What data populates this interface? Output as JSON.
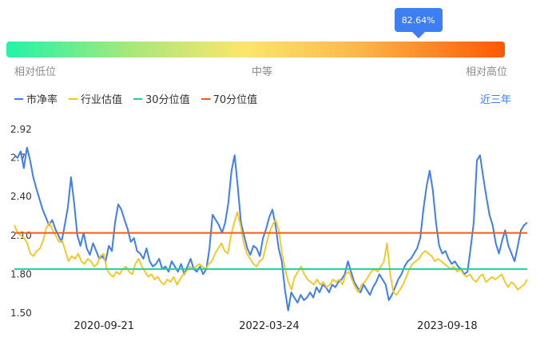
{
  "gauge": {
    "percentile_label": "82.64%",
    "percentile": 0.8264,
    "low_label": "相对低位",
    "mid_label": "中等",
    "high_label": "相对高位"
  },
  "legend": [
    {
      "label": "市净率",
      "color": "#3d7ef4"
    },
    {
      "label": "行业估值",
      "color": "#f8c51b"
    },
    {
      "label": "30分位值",
      "color": "#1ad39a"
    },
    {
      "label": "70分位值",
      "color": "#fa5a11"
    }
  ],
  "range_label": "近三年",
  "chart_data": {
    "type": "line",
    "ylim": [
      1.5,
      2.92
    ],
    "y_ticks": [
      "2.92",
      "2.7",
      "2.40",
      "2.10",
      "1.80",
      "1.50"
    ],
    "y_tick_values": [
      2.92,
      2.7,
      2.4,
      2.1,
      1.8,
      1.5
    ],
    "x_ticks": [
      "2020-09-21",
      "2022-03-24",
      "2023-09-18"
    ],
    "x_tick_positions": [
      0.18,
      0.5,
      0.845
    ],
    "reference_lines": [
      {
        "name": "30分位值",
        "value": 1.84,
        "color": "#1ad39a"
      },
      {
        "name": "70分位值",
        "value": 2.12,
        "color": "#fa5a11"
      }
    ],
    "series": [
      {
        "name": "市净率",
        "color": "#3d7ef4",
        "values": [
          2.72,
          2.7,
          2.75,
          2.62,
          2.78,
          2.68,
          2.55,
          2.46,
          2.38,
          2.3,
          2.24,
          2.18,
          2.22,
          2.15,
          2.1,
          2.05,
          2.18,
          2.32,
          2.55,
          2.35,
          2.1,
          2.02,
          2.12,
          2.0,
          1.95,
          2.04,
          1.98,
          1.92,
          1.94,
          1.9,
          2.02,
          1.98,
          2.2,
          2.34,
          2.3,
          2.22,
          2.15,
          2.05,
          2.08,
          1.98,
          1.96,
          1.92,
          2.0,
          1.9,
          1.86,
          1.88,
          1.92,
          1.84,
          1.86,
          1.82,
          1.9,
          1.86,
          1.82,
          1.88,
          1.8,
          1.86,
          1.92,
          1.84,
          1.82,
          1.86,
          1.8,
          1.84,
          2.0,
          2.26,
          2.22,
          2.18,
          2.12,
          2.2,
          2.35,
          2.6,
          2.72,
          2.48,
          2.2,
          2.1,
          2.0,
          1.95,
          2.02,
          2.0,
          1.94,
          2.08,
          2.15,
          2.24,
          2.3,
          2.18,
          2.0,
          1.9,
          1.68,
          1.52,
          1.66,
          1.62,
          1.58,
          1.64,
          1.6,
          1.62,
          1.66,
          1.62,
          1.7,
          1.66,
          1.72,
          1.7,
          1.66,
          1.72,
          1.7,
          1.74,
          1.76,
          1.8,
          1.9,
          1.82,
          1.74,
          1.7,
          1.66,
          1.72,
          1.68,
          1.64,
          1.7,
          1.74,
          1.8,
          1.76,
          1.72,
          1.6,
          1.64,
          1.7,
          1.76,
          1.8,
          1.86,
          1.9,
          1.92,
          1.96,
          2.0,
          2.08,
          2.3,
          2.48,
          2.6,
          2.45,
          2.2,
          2.02,
          1.96,
          1.98,
          1.92,
          1.88,
          1.9,
          1.86,
          1.84,
          1.8,
          1.82,
          2.0,
          2.2,
          2.68,
          2.72,
          2.55,
          2.4,
          2.26,
          2.18,
          2.04,
          1.96,
          2.06,
          2.14,
          2.02,
          1.96,
          1.9,
          2.02,
          2.14,
          2.18,
          2.2
        ]
      },
      {
        "name": "行业估值",
        "color": "#f8c51b",
        "values": [
          2.18,
          2.12,
          2.1,
          2.08,
          2.04,
          1.96,
          1.94,
          1.98,
          2.0,
          2.06,
          2.16,
          2.2,
          2.14,
          2.1,
          2.05,
          2.06,
          1.98,
          1.9,
          1.94,
          1.92,
          1.96,
          1.9,
          1.88,
          1.92,
          1.9,
          1.86,
          1.88,
          1.94,
          1.96,
          1.84,
          1.8,
          1.78,
          1.82,
          1.8,
          1.84,
          1.86,
          1.82,
          1.8,
          1.88,
          1.92,
          1.86,
          1.82,
          1.78,
          1.8,
          1.76,
          1.78,
          1.74,
          1.72,
          1.76,
          1.74,
          1.78,
          1.72,
          1.76,
          1.8,
          1.82,
          1.86,
          1.84,
          1.86,
          1.88,
          1.86,
          1.84,
          1.88,
          1.9,
          1.96,
          2.0,
          2.04,
          1.98,
          1.96,
          2.1,
          2.2,
          2.28,
          2.18,
          2.04,
          1.96,
          1.92,
          1.88,
          1.86,
          1.9,
          1.92,
          2.02,
          2.12,
          2.18,
          2.22,
          2.14,
          1.96,
          1.84,
          1.74,
          1.68,
          1.78,
          1.82,
          1.86,
          1.8,
          1.76,
          1.74,
          1.72,
          1.76,
          1.72,
          1.74,
          1.7,
          1.72,
          1.76,
          1.74,
          1.76,
          1.72,
          1.8,
          1.82,
          1.76,
          1.7,
          1.66,
          1.72,
          1.74,
          1.78,
          1.82,
          1.84,
          1.82,
          1.86,
          1.9,
          2.04,
          1.8,
          1.66,
          1.64,
          1.68,
          1.72,
          1.78,
          1.84,
          1.88,
          1.9,
          1.92,
          1.96,
          1.98,
          1.96,
          1.94,
          1.9,
          1.92,
          1.9,
          1.88,
          1.86,
          1.84,
          1.86,
          1.82,
          1.84,
          1.8,
          1.78,
          1.8,
          1.76,
          1.74,
          1.78,
          1.8,
          1.74,
          1.76,
          1.78,
          1.76,
          1.78,
          1.8,
          1.74,
          1.7,
          1.74,
          1.72,
          1.68,
          1.7,
          1.72,
          1.76
        ]
      }
    ]
  }
}
